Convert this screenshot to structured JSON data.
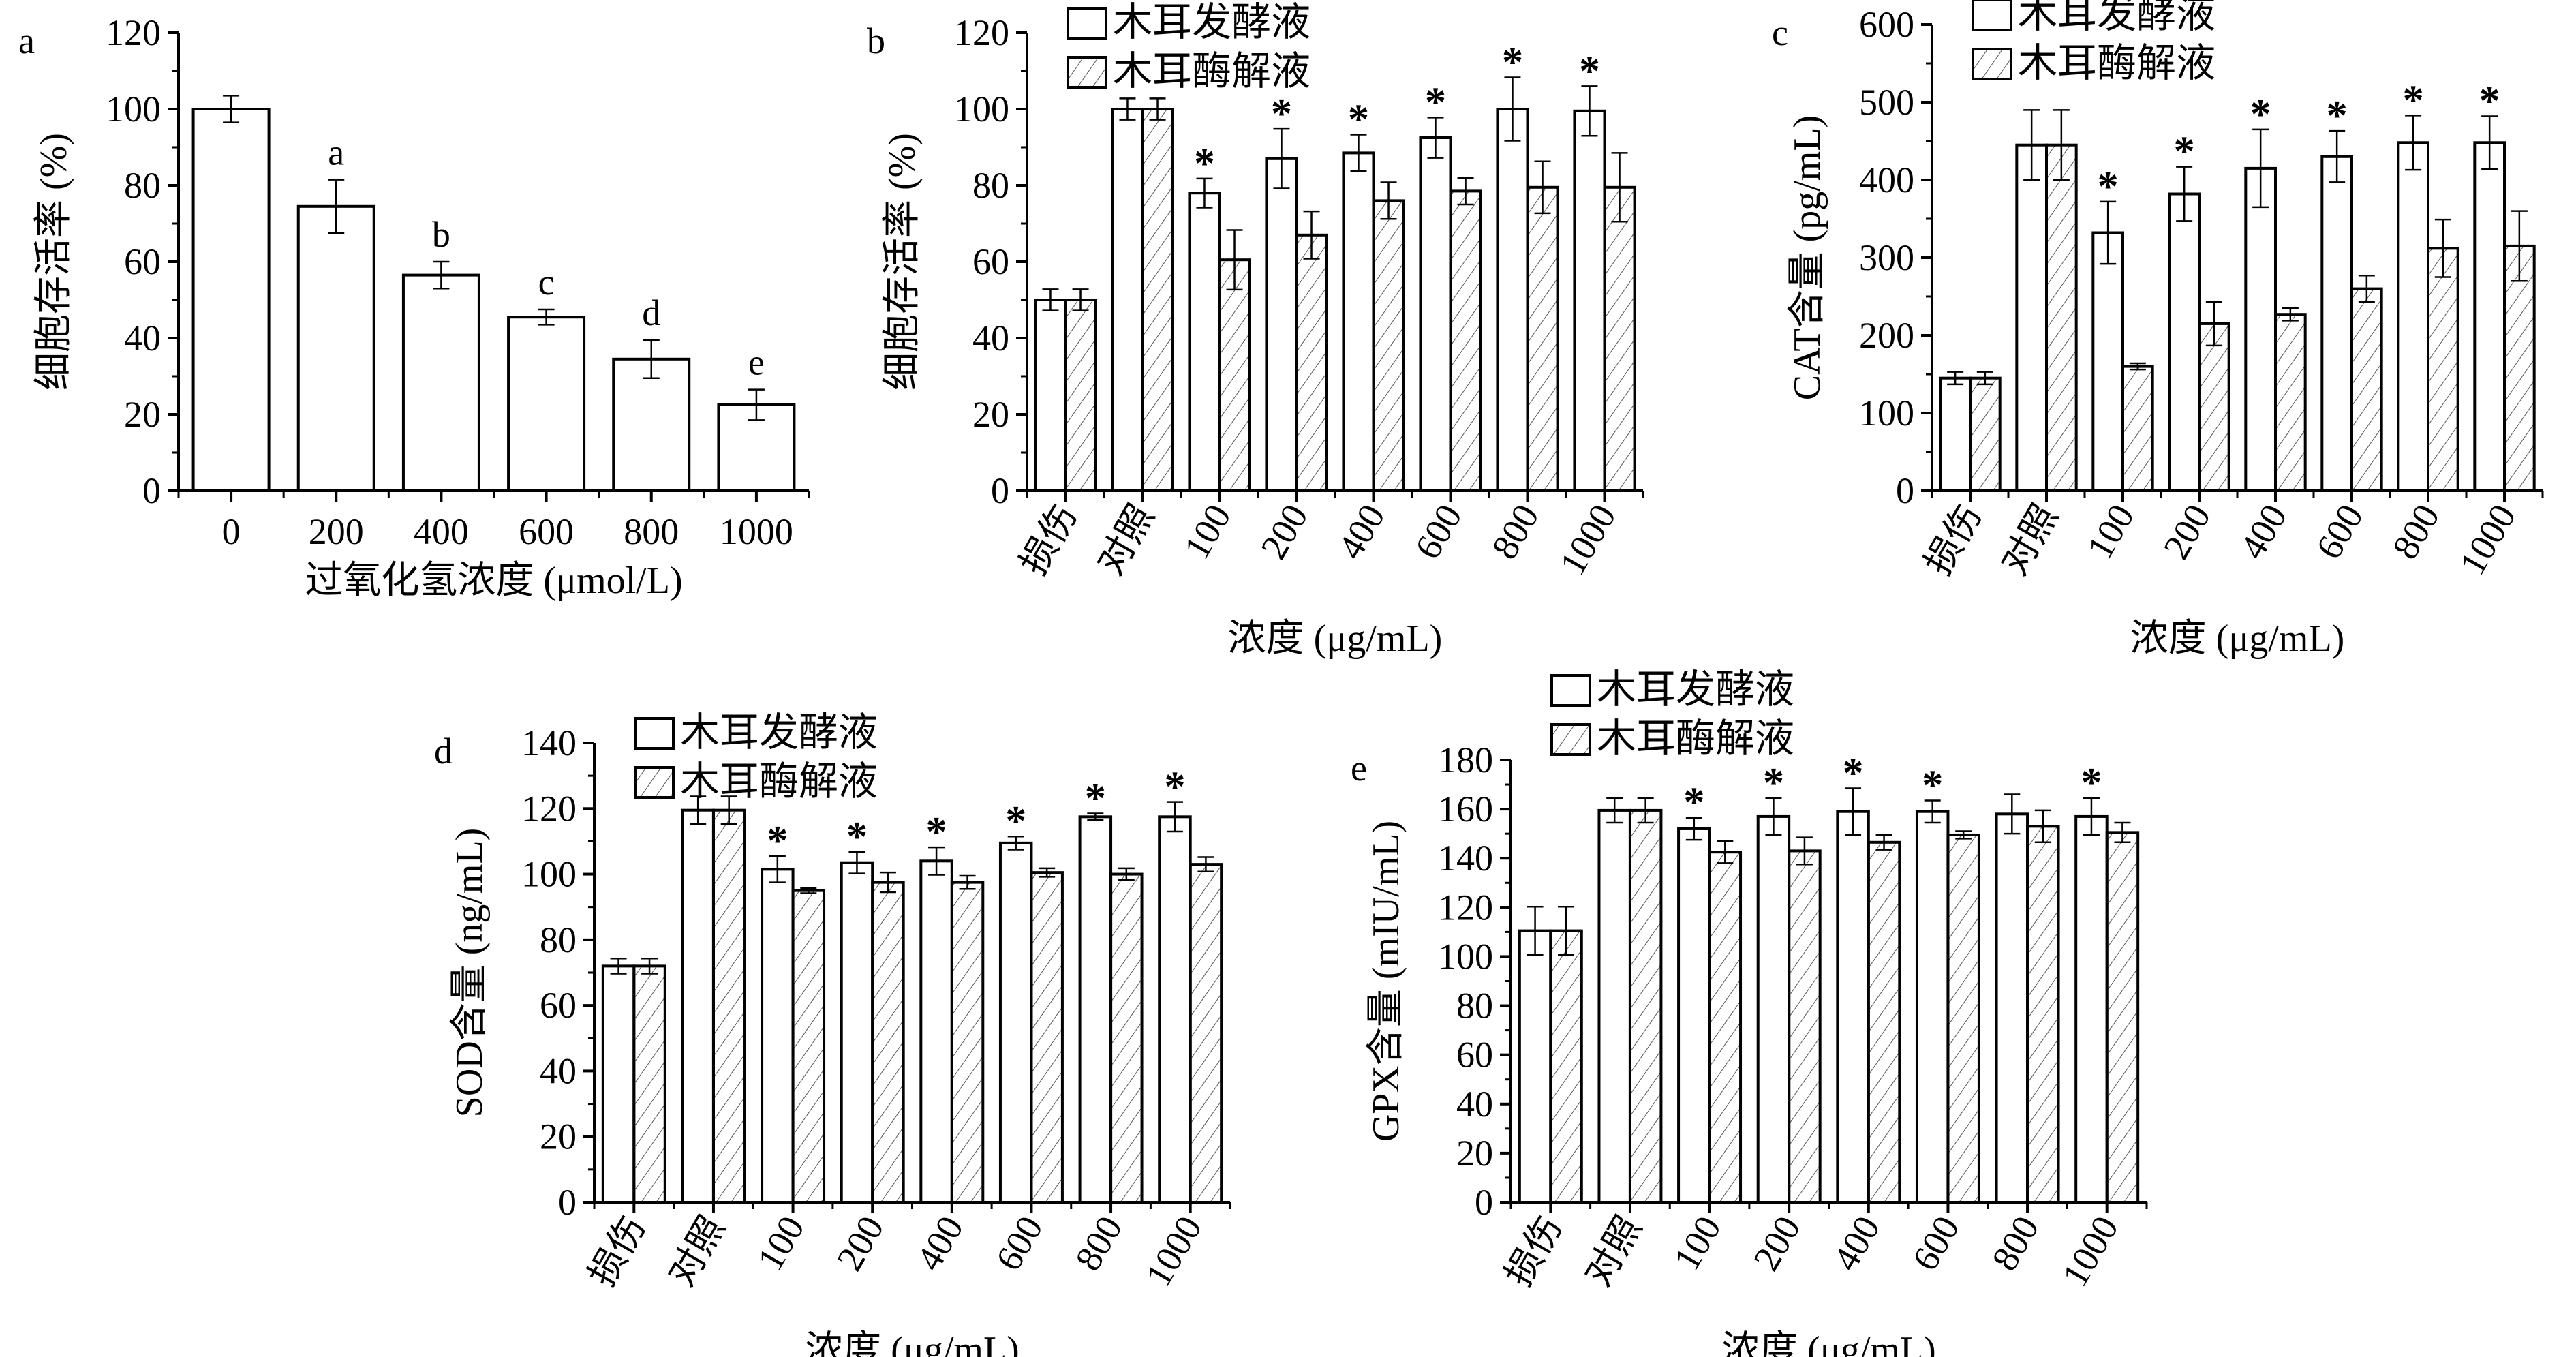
{
  "legend": [
    "木耳发酵液",
    "木耳酶解液"
  ],
  "chart_data": [
    {
      "type": "bar",
      "panel": "a",
      "categories": [
        "0",
        "200",
        "400",
        "600",
        "800",
        "1000"
      ],
      "series": [
        {
          "name": "",
          "values": [
            100,
            74.5,
            56.5,
            45.5,
            34.5,
            22.5
          ],
          "errors": [
            3.5,
            7,
            3.5,
            2,
            5,
            4
          ]
        }
      ],
      "annotations": [
        "",
        "a",
        "b",
        "c",
        "d",
        "e"
      ],
      "xlabel": "过氧化氢浓度 (μmol/L)",
      "ylabel": "细胞存活率 (%)",
      "ylim": [
        0,
        120
      ],
      "ytick_step": 20,
      "legend": false,
      "xtick_rotation": 0
    },
    {
      "type": "bar",
      "panel": "b",
      "categories": [
        "损伤",
        "对照",
        "100",
        "200",
        "400",
        "600",
        "800",
        "1000"
      ],
      "series": [
        {
          "name": "木耳发酵液",
          "values": [
            50,
            100,
            78,
            87,
            88.5,
            92.5,
            100,
            99.5
          ],
          "errors": [
            2.8,
            2.8,
            3.8,
            7.8,
            4.8,
            5.3,
            8.3,
            6.5
          ]
        },
        {
          "name": "木耳酶解液",
          "values": [
            50,
            100,
            60.5,
            67,
            76,
            78.5,
            79.5,
            79.5
          ],
          "errors": [
            2.8,
            2.8,
            7.8,
            6.2,
            4.8,
            3.5,
            6.8,
            9
          ]
        }
      ],
      "annotations": [
        "",
        "",
        "*",
        "*",
        "*",
        "*",
        "*",
        "*"
      ],
      "xlabel": "浓度 (μg/mL)",
      "ylabel": "细胞存活率 (%)",
      "ylim": [
        0,
        120
      ],
      "ytick_step": 20,
      "legend": "top-left",
      "xtick_rotation": -60
    },
    {
      "type": "bar",
      "panel": "c",
      "categories": [
        "损伤",
        "对照",
        "100",
        "200",
        "400",
        "600",
        "800",
        "1000"
      ],
      "series": [
        {
          "name": "木耳发酵液",
          "values": [
            145,
            445,
            332,
            382,
            415,
            430,
            448,
            448
          ],
          "errors": [
            8,
            45,
            40,
            35,
            50,
            33,
            35,
            34
          ]
        },
        {
          "name": "木耳酶解液",
          "values": [
            145,
            445,
            160,
            215,
            227,
            260,
            312,
            315
          ],
          "errors": [
            8,
            45,
            4,
            28,
            8,
            17,
            37,
            45
          ]
        }
      ],
      "annotations": [
        "",
        "",
        "*",
        "*",
        "*",
        "*",
        "*",
        "*"
      ],
      "xlabel": "浓度 (μg/mL)",
      "ylabel": "CAT含量 (pg/mL)",
      "ylim": [
        0,
        600
      ],
      "ytick_step": 100,
      "legend": "top-left",
      "xtick_rotation": -60
    },
    {
      "type": "bar",
      "panel": "d",
      "categories": [
        "损伤",
        "对照",
        "100",
        "200",
        "400",
        "600",
        "800",
        "1000"
      ],
      "series": [
        {
          "name": "木耳发酵液",
          "values": [
            72,
            119.5,
            101.5,
            103.5,
            104,
            109.5,
            117.5,
            117.5
          ],
          "errors": [
            2.3,
            4.2,
            4,
            3.3,
            4.2,
            2,
            1,
            4.5
          ]
        },
        {
          "name": "木耳酶解液",
          "values": [
            72,
            119.5,
            95,
            97.5,
            97.5,
            100.5,
            100,
            103
          ],
          "errors": [
            2.3,
            4.2,
            0.8,
            3,
            2,
            1.3,
            1.8,
            2.2
          ]
        }
      ],
      "annotations": [
        "",
        "",
        "*",
        "*",
        "*",
        "*",
        "*",
        "*"
      ],
      "xlabel": "浓度 (μg/mL)",
      "ylabel": "SOD含量 (ng/mL)",
      "ylim": [
        0,
        140
      ],
      "ytick_step": 20,
      "legend": "top-left",
      "xtick_rotation": -60
    },
    {
      "type": "bar",
      "panel": "e",
      "categories": [
        "损伤",
        "对照",
        "100",
        "200",
        "400",
        "600",
        "800",
        "1000"
      ],
      "series": [
        {
          "name": "木耳发酵液",
          "values": [
            110.5,
            159.5,
            152,
            157,
            159,
            159,
            158,
            157
          ],
          "errors": [
            9.8,
            5,
            4.5,
            7.5,
            9.5,
            4.5,
            8,
            7.5
          ]
        },
        {
          "name": "木耳酶解液",
          "values": [
            110.5,
            159.5,
            142.5,
            143,
            146.5,
            149.5,
            153,
            150.5
          ],
          "errors": [
            9.8,
            5,
            4.5,
            5.5,
            3,
            1.5,
            6.5,
            4
          ]
        }
      ],
      "annotations": [
        "",
        "",
        "*",
        "*",
        "*",
        "*",
        "",
        "*"
      ],
      "xlabel": "浓度 (μg/mL)",
      "ylabel": "GPX含量 (mIU/mL)",
      "ylim": [
        0,
        180
      ],
      "ytick_step": 20,
      "legend": "top-left",
      "xtick_rotation": -60
    }
  ]
}
